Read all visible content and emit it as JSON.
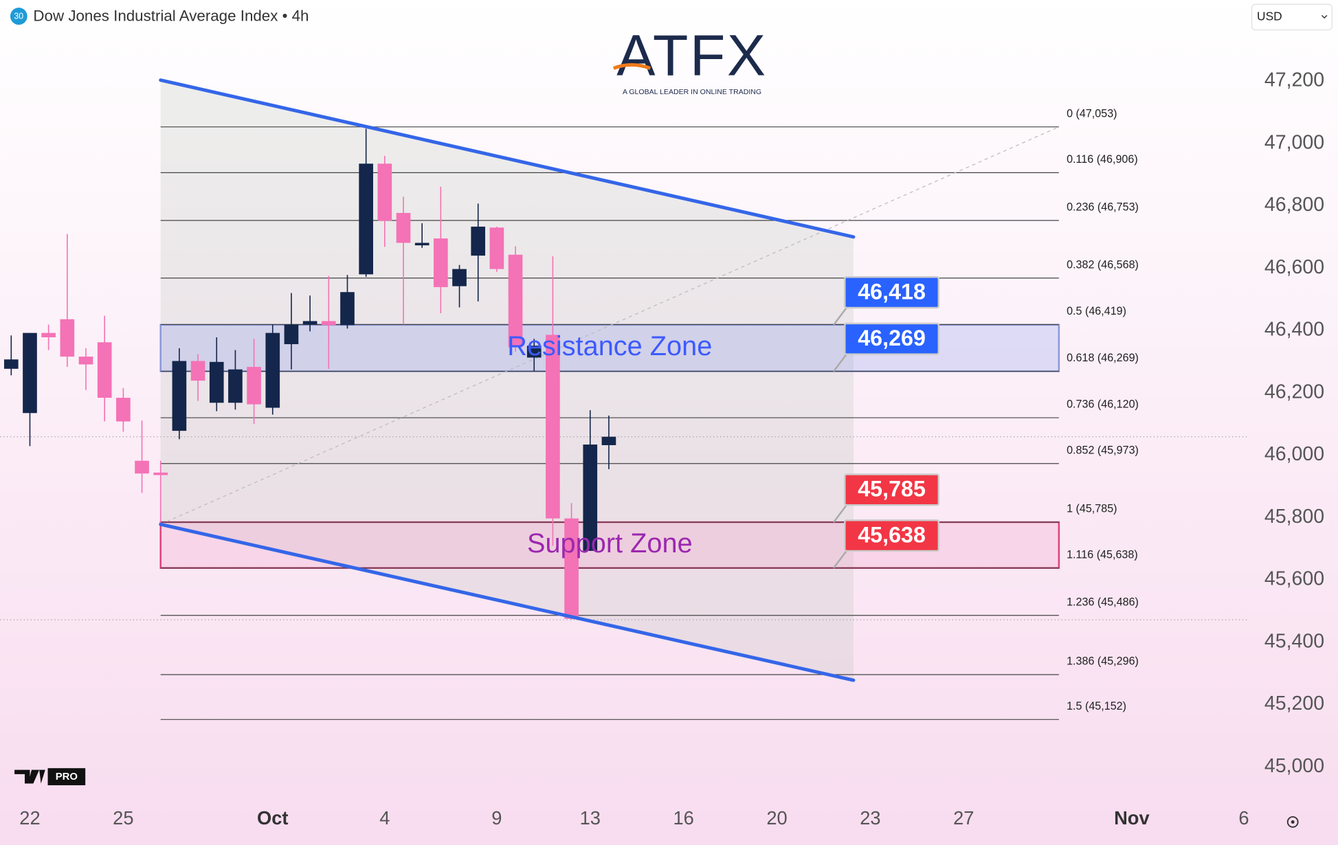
{
  "chart_data": {
    "type": "candlestick",
    "title": "Dow Jones Industrial Average Index • 4h",
    "symbol_badge": "30",
    "currency": "USD",
    "logo": {
      "name": "ATFX",
      "tagline": "A GLOBAL LEADER IN ONLINE TRADING"
    },
    "badge": "PRO",
    "up_color": "#14264b",
    "down_color": "#f472b6",
    "x": [
      0,
      1,
      2,
      3,
      4,
      5,
      6,
      7,
      8,
      9,
      10,
      11,
      12,
      13,
      14,
      15,
      16,
      17,
      18,
      19,
      20,
      21,
      22,
      23,
      24,
      25,
      26,
      27,
      28,
      29,
      30,
      31,
      32
    ],
    "open": [
      46277,
      46135,
      46392,
      46436,
      46316,
      46362,
      46184,
      45982,
      45944,
      46078,
      46302,
      46168,
      46168,
      46283,
      46152,
      46356,
      46419,
      46430,
      46417,
      46580,
      46935,
      46777,
      46673,
      46695,
      46542,
      46640,
      46730,
      46643,
      46313,
      46386,
      45797,
      45693,
      46032
    ],
    "high": [
      46384,
      46392,
      46419,
      46709,
      46343,
      46447,
      46215,
      46111,
      45982,
      46343,
      46324,
      46378,
      46337,
      46373,
      46419,
      46520,
      46512,
      46575,
      46578,
      47047,
      46960,
      46829,
      46744,
      46861,
      46610,
      46807,
      46733,
      46670,
      46373,
      46638,
      45846,
      46144,
      46127
    ],
    "low": [
      46256,
      46029,
      46337,
      46283,
      46209,
      46108,
      46075,
      45879,
      45778,
      46051,
      46174,
      46141,
      46146,
      46100,
      46130,
      46275,
      46397,
      46277,
      46406,
      46572,
      46668,
      46419,
      46665,
      46455,
      46474,
      46493,
      46588,
      46332,
      46269,
      45709,
      45472,
      45693,
      45955
    ],
    "close": [
      46307,
      46392,
      46378,
      46316,
      46291,
      46184,
      46108,
      45941,
      45936,
      46302,
      46239,
      46299,
      46275,
      46163,
      46392,
      46419,
      46430,
      46417,
      46523,
      46935,
      46752,
      46681,
      46681,
      46539,
      46597,
      46733,
      46597,
      46346,
      46351,
      45797,
      45475,
      46034,
      46059
    ],
    "xlim": [
      -0.6,
      66.2
    ],
    "xticks": [
      {
        "value": 1,
        "label": "22"
      },
      {
        "value": 6,
        "label": "25"
      },
      {
        "value": 14,
        "label": "Oct"
      },
      {
        "value": 20,
        "label": "4"
      },
      {
        "value": 26,
        "label": "9"
      },
      {
        "value": 31,
        "label": "13"
      },
      {
        "value": 36,
        "label": "16"
      },
      {
        "value": 41,
        "label": "20"
      },
      {
        "value": 46,
        "label": "23"
      },
      {
        "value": 51,
        "label": "27"
      },
      {
        "value": 60,
        "label": "Nov"
      },
      {
        "value": 66,
        "label": "6"
      }
    ],
    "ylim": [
      44900,
      47460
    ],
    "yticks": [
      {
        "value": 45000,
        "label": "45,000"
      },
      {
        "value": 45200,
        "label": "45,200"
      },
      {
        "value": 45400,
        "label": "45,400"
      },
      {
        "value": 45600,
        "label": "45,600"
      },
      {
        "value": 45800,
        "label": "45,800"
      },
      {
        "value": 46000,
        "label": "46,000"
      },
      {
        "value": 46200,
        "label": "46,200"
      },
      {
        "value": 46400,
        "label": "46,400"
      },
      {
        "value": 46600,
        "label": "46,600"
      },
      {
        "value": 46800,
        "label": "46,800"
      },
      {
        "value": 47000,
        "label": "47,000"
      },
      {
        "value": 47200,
        "label": "47,200"
      }
    ],
    "fib_x_range": [
      8,
      56.1
    ],
    "fib_levels": [
      {
        "value": 47053,
        "label": "0 (47,053)"
      },
      {
        "value": 46906,
        "label": "0.116 (46,906)"
      },
      {
        "value": 46753,
        "label": "0.236 (46,753)"
      },
      {
        "value": 46568,
        "label": "0.382 (46,568)"
      },
      {
        "value": 46419,
        "label": "0.5 (46,419)"
      },
      {
        "value": 46269,
        "label": "0.618 (46,269)"
      },
      {
        "value": 46120,
        "label": "0.736 (46,120)"
      },
      {
        "value": 45973,
        "label": "0.852 (45,973)"
      },
      {
        "value": 45785,
        "label": "1 (45,785)"
      },
      {
        "value": 45638,
        "label": "1.116 (45,638)"
      },
      {
        "value": 45486,
        "label": "1.236 (45,486)"
      },
      {
        "value": 45296,
        "label": "1.386 (45,296)"
      },
      {
        "value": 45152,
        "label": "1.5 (45,152)"
      }
    ],
    "zones": [
      {
        "label": "Resistance Zone",
        "range": [
          46269,
          46418
        ],
        "color": "#3d5afe",
        "fill": "rgba(120,140,235,0.22)",
        "stroke": "#8a98d8"
      },
      {
        "label": "Support Zone",
        "range": [
          45638,
          45785
        ],
        "color": "#9c27b0",
        "fill": "rgba(245,170,205,0.3)",
        "stroke": "#e0407a"
      }
    ],
    "channel": [
      {
        "x": [
          8,
          45.1
        ],
        "values": [
          47203,
          46700
        ]
      },
      {
        "x": [
          8,
          45.1
        ],
        "values": [
          45778,
          45278
        ]
      }
    ],
    "channel_color": "#3466e8",
    "price_labels": [
      {
        "value": 46418,
        "label": "46,418",
        "color": "#2962ff"
      },
      {
        "value": 46269,
        "label": "46,269",
        "color": "#2962ff"
      },
      {
        "value": 45785,
        "label": "45,785",
        "color": "#f23645"
      },
      {
        "value": 45638,
        "label": "45,638",
        "color": "#f23645"
      }
    ]
  }
}
